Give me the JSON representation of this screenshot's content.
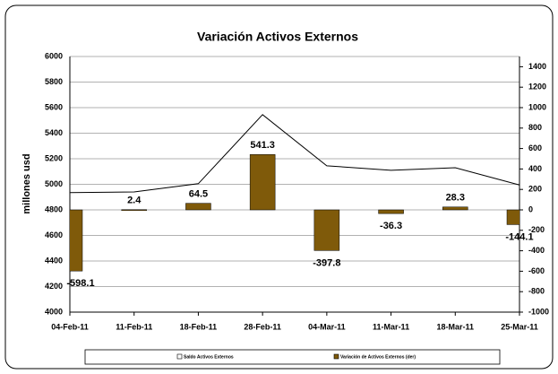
{
  "chart_data": {
    "type": "bar_line",
    "title": "Variación Activos Externos",
    "y_label": "millones usd",
    "categories": [
      "04-Feb-11",
      "11-Feb-11",
      "18-Feb-11",
      "28-Feb-11",
      "04-Mar-11",
      "11-Mar-11",
      "18-Mar-11",
      "25-Mar-11"
    ],
    "series": [
      {
        "name": "Saldo Activos Externos",
        "kind": "line",
        "color": "#000000",
        "axis": "y",
        "values": [
          4935,
          4940,
          5005,
          5545,
          5145,
          5110,
          5130,
          4995
        ]
      },
      {
        "name": "Variación de Activos Externos (der)",
        "kind": "bar",
        "color": "#7f5a0a",
        "axis": "y2",
        "values": [
          -598.1,
          2.4,
          64.5,
          541.3,
          -397.8,
          -36.3,
          28.3,
          -144.1
        ]
      }
    ],
    "ylim": [
      4000,
      6000
    ],
    "yticks": [
      4000,
      4200,
      4400,
      4600,
      4800,
      5000,
      5200,
      5400,
      5600,
      5800,
      6000
    ],
    "y2lim": [
      -1000,
      1500
    ],
    "y2ticks": [
      -1000,
      -800,
      -600,
      -400,
      -200,
      0,
      200,
      400,
      600,
      800,
      1000,
      1200,
      1400
    ],
    "grid": true,
    "legend": "bottom"
  }
}
